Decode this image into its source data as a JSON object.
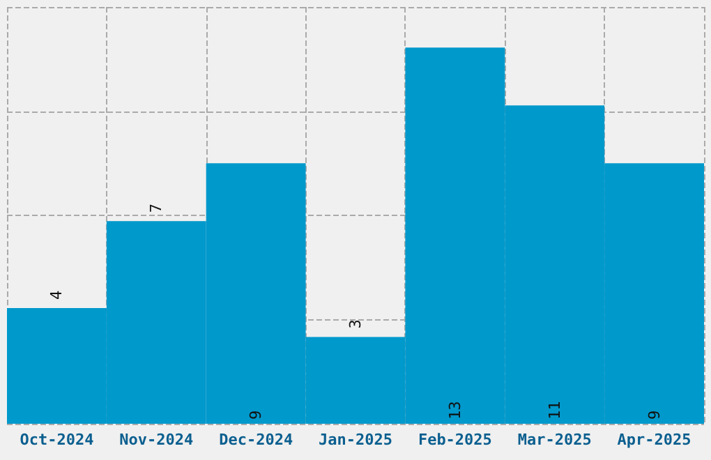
{
  "chart_data": {
    "type": "bar",
    "categories": [
      "Oct-2024",
      "Nov-2024",
      "Dec-2024",
      "Jan-2025",
      "Feb-2025",
      "Mar-2025",
      "Apr-2025"
    ],
    "values": [
      4,
      7,
      9,
      3,
      13,
      11,
      9
    ],
    "color": "#0099cc",
    "ylim": [
      0,
      14.4
    ],
    "yticks": [
      {
        "value": 0,
        "label": null
      },
      {
        "value": 3.6,
        "label": null
      },
      {
        "value": 7.2,
        "label": null
      },
      {
        "value": 10.8,
        "label": null
      },
      {
        "value": 14.4,
        "label": null
      }
    ],
    "tick_labels": "x",
    "grid": true,
    "data_labels": true
  }
}
